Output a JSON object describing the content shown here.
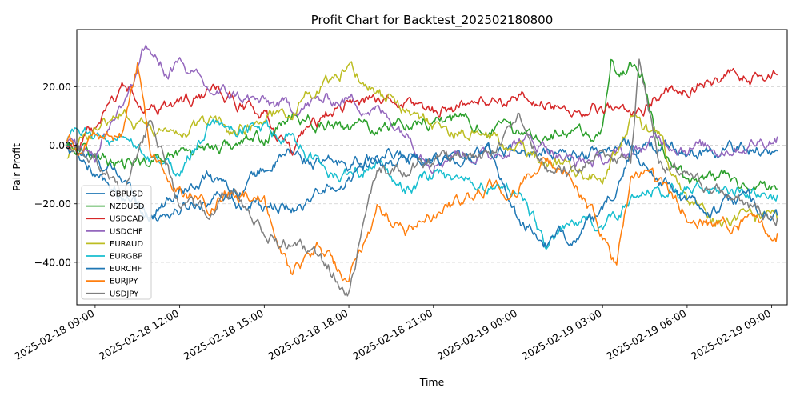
{
  "chart_data": {
    "type": "line",
    "title": "Profit Chart for Backtest_202502180800",
    "xlabel": "Time",
    "ylabel": "Pair Profit",
    "x_range_hours": [
      -0.65,
      24.55
    ],
    "x_ticks": [
      {
        "hour": 0,
        "label": "2025-02-18 09:00"
      },
      {
        "hour": 3,
        "label": "2025-02-18 12:00"
      },
      {
        "hour": 6,
        "label": "2025-02-18 15:00"
      },
      {
        "hour": 9,
        "label": "2025-02-18 18:00"
      },
      {
        "hour": 12,
        "label": "2025-02-18 21:00"
      },
      {
        "hour": 15,
        "label": "2025-02-19 00:00"
      },
      {
        "hour": 18,
        "label": "2025-02-19 03:00"
      },
      {
        "hour": 21,
        "label": "2025-02-19 06:00"
      },
      {
        "hour": 24,
        "label": "2025-02-19 09:00"
      }
    ],
    "ylim": [
      -54.5,
      39.5
    ],
    "y_ticks": [
      {
        "value": 20,
        "label": "20.00"
      },
      {
        "value": 0,
        "label": "0.00"
      },
      {
        "value": -20,
        "label": "−20.00"
      },
      {
        "value": -40,
        "label": "−40.00"
      }
    ],
    "grid": "horizontal dashed",
    "legend_position": "lower-left",
    "series": [
      {
        "name": "GBPUSD",
        "color": "#1f77b4",
        "hours": [
          -1,
          0,
          1,
          2,
          3,
          4,
          5,
          6,
          7,
          8,
          9,
          10,
          11,
          12,
          13,
          14,
          15,
          16,
          17,
          18,
          19,
          20,
          21,
          22,
          23,
          24.2
        ],
        "values": [
          0,
          -5,
          -12,
          -24,
          -22,
          -18,
          -15,
          -8,
          -3,
          -7,
          -6,
          -5,
          -4,
          -3,
          -4,
          -3,
          -2,
          -4,
          -3,
          -2,
          0,
          -1,
          -2,
          -2,
          -1,
          -2
        ]
      },
      {
        "name": "NZDUSD",
        "color": "#2ca02c",
        "hours": [
          -1,
          0,
          1,
          2,
          3,
          4,
          5,
          6,
          7,
          8,
          9,
          10,
          11,
          12,
          13,
          14,
          15,
          16,
          17,
          18,
          18.3,
          18.6,
          19,
          19.4,
          20,
          21,
          22,
          23,
          24.2
        ],
        "values": [
          1,
          -3,
          -8,
          -5,
          -2,
          0,
          0,
          2,
          10,
          8,
          5,
          6,
          8,
          9,
          8,
          6,
          4,
          4,
          3,
          5,
          28,
          22,
          28,
          24,
          0,
          -12,
          -10,
          -14,
          -15
        ]
      },
      {
        "name": "USDCAD",
        "color": "#d62728",
        "hours": [
          -1,
          0,
          1,
          2,
          3,
          4,
          5,
          6,
          7,
          8,
          9,
          10,
          11,
          12,
          13,
          14,
          15,
          16,
          17,
          18,
          19,
          20,
          21,
          22,
          23,
          24.2
        ],
        "values": [
          0,
          4,
          20,
          12,
          14,
          18,
          15,
          10,
          -3,
          8,
          15,
          16,
          14,
          12,
          14,
          16,
          15,
          14,
          12,
          12,
          10,
          18,
          20,
          22,
          23,
          24
        ]
      },
      {
        "name": "USDCHF",
        "color": "#9467bd",
        "hours": [
          -1,
          0,
          1,
          1.8,
          2.5,
          3,
          4,
          5,
          6,
          7,
          8,
          9,
          10,
          11,
          12,
          13,
          14,
          15,
          16,
          17,
          18,
          19,
          20,
          21,
          22,
          23,
          24.2
        ],
        "values": [
          0,
          -2,
          15,
          34,
          25,
          28,
          18,
          17,
          14,
          13,
          15,
          16,
          12,
          5,
          -5,
          -2,
          -4,
          2,
          0,
          -6,
          -5,
          -3,
          2,
          0,
          -1,
          0,
          3
        ]
      },
      {
        "name": "EURAUD",
        "color": "#bcbd22",
        "hours": [
          -1,
          0,
          1,
          2,
          3,
          4,
          5,
          6,
          7,
          8,
          9,
          10,
          11,
          12,
          13,
          14,
          15,
          16,
          17,
          18,
          19,
          20,
          21,
          22,
          23,
          24.2
        ],
        "values": [
          -3,
          5,
          12,
          5,
          3,
          8,
          5,
          10,
          12,
          20,
          28,
          18,
          12,
          7,
          4,
          2,
          -2,
          -5,
          -8,
          -10,
          8,
          2,
          -20,
          -25,
          -24,
          -26
        ]
      },
      {
        "name": "EURGBP",
        "color": "#17becf",
        "hours": [
          -1,
          0,
          1,
          2,
          3,
          4,
          5,
          6,
          7,
          8,
          9,
          10,
          11,
          12,
          13,
          14,
          15,
          16,
          17,
          18,
          19,
          20,
          21,
          22,
          23,
          24.2
        ],
        "values": [
          2,
          4,
          0,
          -5,
          -8,
          5,
          6,
          5,
          4,
          -8,
          -10,
          -5,
          -15,
          -10,
          -12,
          -14,
          -15,
          -34,
          -27,
          -27,
          -20,
          -15,
          -16,
          -16,
          -15,
          -17
        ]
      },
      {
        "name": "EURCHF",
        "color": "#1f77b4",
        "hours": [
          -1,
          0,
          1,
          2,
          3,
          4,
          5,
          6,
          7,
          8,
          9,
          10,
          11,
          12,
          13,
          14,
          15,
          16,
          17,
          18,
          19,
          20,
          21,
          22,
          23,
          24.2
        ],
        "values": [
          -1,
          -8,
          -18,
          -25,
          -14,
          -10,
          -20,
          -20,
          -22,
          -18,
          -12,
          -6,
          -8,
          -5,
          -4,
          -2,
          -25,
          -34,
          -30,
          -25,
          -3,
          -10,
          -20,
          -22,
          -18,
          -24
        ]
      },
      {
        "name": "EURJPY",
        "color": "#ff7f0e",
        "hours": [
          -1,
          0,
          1,
          1.5,
          2,
          3,
          4,
          5,
          6,
          7,
          8,
          9,
          10,
          11,
          12,
          13,
          14,
          15,
          16,
          17,
          18,
          18.5,
          19,
          19.5,
          20,
          21,
          22,
          23,
          24.2
        ],
        "values": [
          0,
          2,
          4,
          27,
          -2,
          -15,
          -20,
          -15,
          -20,
          -45,
          -35,
          -47,
          -22,
          -30,
          -25,
          -20,
          -15,
          -15,
          -5,
          -12,
          -30,
          -42,
          -12,
          -8,
          -15,
          -23,
          -28,
          -26,
          -30
        ]
      },
      {
        "name": "USDJPY",
        "color": "#7f7f7f",
        "hours": [
          -1,
          0,
          1,
          2,
          3,
          4,
          5,
          6,
          7,
          8,
          9,
          10,
          11,
          12,
          13,
          14,
          15,
          16,
          17,
          18,
          19,
          19.3,
          20,
          21,
          22,
          23,
          24.2
        ],
        "values": [
          0,
          -5,
          -15,
          10,
          -20,
          -24,
          -15,
          -30,
          -35,
          -40,
          -48,
          -10,
          -8,
          -5,
          -5,
          -4,
          8,
          -8,
          -10,
          -2,
          -5,
          30,
          -5,
          -12,
          -15,
          -20,
          -25
        ]
      }
    ]
  }
}
